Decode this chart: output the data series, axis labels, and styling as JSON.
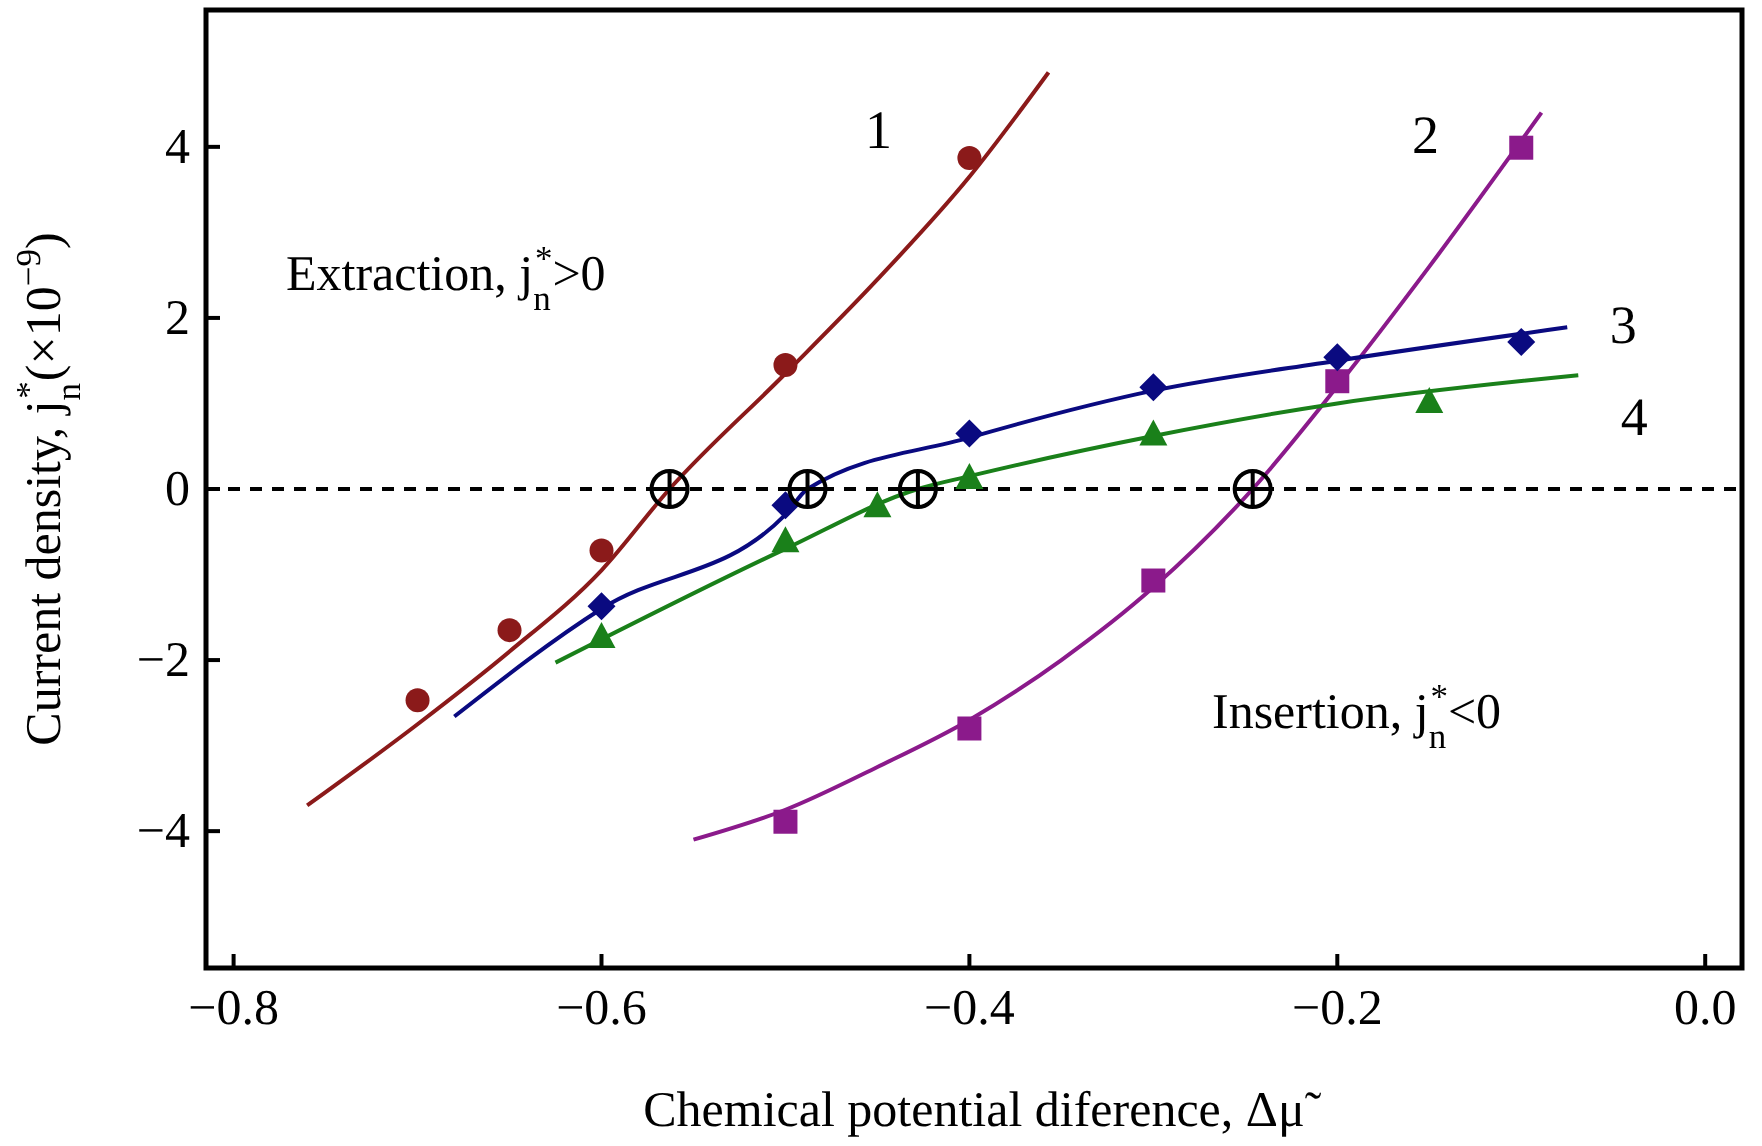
{
  "chart_data": {
    "type": "scatter",
    "xlabel": "Chemical potential diference, Δμ̃",
    "ylabel": "Current density, j$_{n}$$^{*}$(×10$^{−9}$)",
    "xlim": [
      -0.815,
      0.02
    ],
    "ylim": [
      -5.6,
      5.6
    ],
    "xticks": [
      {
        "value": -0.8,
        "label": "−0.8"
      },
      {
        "value": -0.6,
        "label": "−0.6"
      },
      {
        "value": -0.4,
        "label": "−0.4"
      },
      {
        "value": -0.2,
        "label": "−0.2"
      },
      {
        "value": 0,
        "label": "0.0"
      }
    ],
    "yticks": [
      {
        "value": -4,
        "label": "−4"
      },
      {
        "value": -2,
        "label": "−2"
      },
      0,
      2,
      4
    ],
    "grid": false,
    "legend": false,
    "ref_lines": [
      {
        "axis": "y",
        "value": 0,
        "color": "#000000",
        "line_style": "dashed"
      }
    ],
    "series": [
      {
        "type": "line",
        "name": "1",
        "color": "#8b1a1a",
        "x": [
          -0.76,
          -0.7,
          -0.65,
          -0.6,
          -0.563,
          -0.5,
          -0.45,
          -0.4,
          -0.357
        ],
        "values": [
          -3.7,
          -2.75,
          -1.9,
          -0.95,
          0,
          1.35,
          2.45,
          3.65,
          4.87
        ]
      },
      {
        "type": "line",
        "name": "2",
        "color": "#8b1a8b",
        "x": [
          -0.55,
          -0.5,
          -0.45,
          -0.4,
          -0.35,
          -0.3,
          -0.246,
          -0.2,
          -0.15,
          -0.089
        ],
        "values": [
          -4.1,
          -3.75,
          -3.25,
          -2.7,
          -2.0,
          -1.15,
          0,
          1.2,
          2.6,
          4.4
        ]
      },
      {
        "type": "line",
        "name": "3",
        "color": "#0a0a80",
        "x": [
          -0.68,
          -0.6,
          -0.5,
          -0.488,
          -0.4,
          -0.3,
          -0.2,
          -0.075
        ],
        "values": [
          -2.66,
          -1.4,
          -0.3,
          0,
          0.6,
          1.15,
          1.5,
          1.89
        ]
      },
      {
        "type": "line",
        "name": "4",
        "color": "#1a801a",
        "x": [
          -0.625,
          -0.5,
          -0.428,
          -0.4,
          -0.3,
          -0.2,
          -0.069
        ],
        "values": [
          -2.03,
          -0.7,
          0,
          0.15,
          0.62,
          1.0,
          1.33
        ]
      },
      {
        "marker": "circle",
        "color": "#8b1a1a",
        "x": [
          -0.7,
          -0.65,
          -0.6,
          -0.5,
          -0.4
        ],
        "values": [
          -2.47,
          -1.65,
          -0.72,
          1.45,
          3.87
        ]
      },
      {
        "marker": "square",
        "color": "#8b1a8b",
        "x": [
          -0.5,
          -0.4,
          -0.3,
          -0.2,
          -0.1
        ],
        "values": [
          -3.89,
          -2.8,
          -1.07,
          1.26,
          3.99
        ]
      },
      {
        "marker": "diamond",
        "color": "#0a0a80",
        "x": [
          -0.6,
          -0.5,
          -0.4,
          -0.3,
          -0.2,
          -0.1
        ],
        "values": [
          -1.37,
          -0.19,
          0.65,
          1.19,
          1.54,
          1.72
        ]
      },
      {
        "marker": "triangle",
        "color": "#1a801a",
        "x": [
          -0.6,
          -0.5,
          -0.45,
          -0.4,
          -0.3,
          -0.15
        ],
        "values": [
          -1.72,
          -0.6,
          -0.19,
          0.14,
          0.65,
          1.03
        ]
      },
      {
        "marker": "cross",
        "color": "#000000",
        "x": [
          -0.563,
          -0.488,
          -0.428,
          -0.246
        ],
        "values": [
          0,
          0,
          0,
          0
        ]
      }
    ],
    "annotations": [
      "Extraction, j$_{n}$$^{*}$>0",
      "Insertion, j$_{n}$$^{*}$<0"
    ]
  }
}
